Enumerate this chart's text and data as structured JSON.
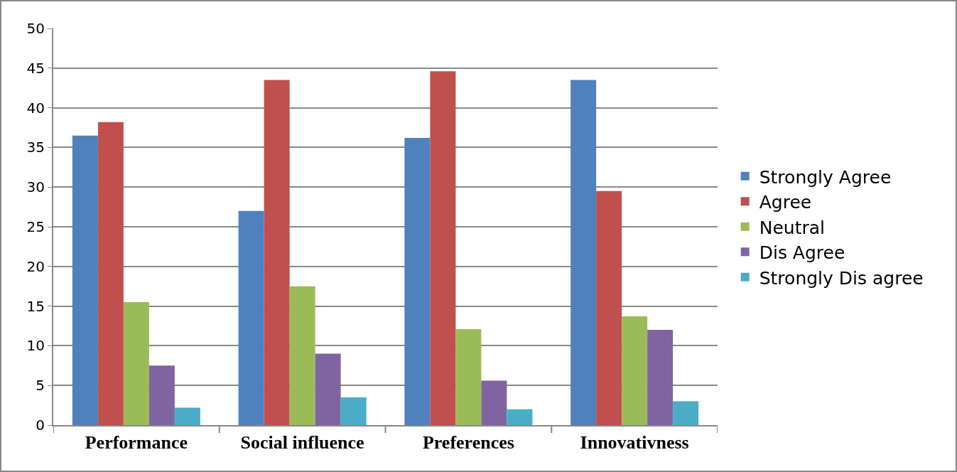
{
  "chart_data": {
    "type": "bar",
    "categories": [
      "Performance",
      "Social influence",
      "Preferences",
      "Innovativness"
    ],
    "series": [
      {
        "name": "Strongly Agree",
        "color": "#4f81bd",
        "values": [
          36.5,
          27,
          36.2,
          43.5
        ]
      },
      {
        "name": "Agree",
        "color": "#c0504d",
        "values": [
          38.2,
          43.5,
          44.6,
          29.5
        ]
      },
      {
        "name": "Neutral",
        "color": "#9bbb59",
        "values": [
          15.5,
          17.5,
          12.1,
          13.7
        ]
      },
      {
        "name": "Dis Agree",
        "color": "#8064a2",
        "values": [
          7.5,
          9,
          5.6,
          12
        ]
      },
      {
        "name": "Strongly Dis agree",
        "color": "#4bacc6",
        "values": [
          2.2,
          3.5,
          2,
          3
        ]
      }
    ],
    "ylim": [
      0,
      50
    ],
    "yticks": [
      0,
      5,
      10,
      15,
      20,
      25,
      30,
      35,
      40,
      45,
      50
    ],
    "grid": "y",
    "legend": "right"
  }
}
